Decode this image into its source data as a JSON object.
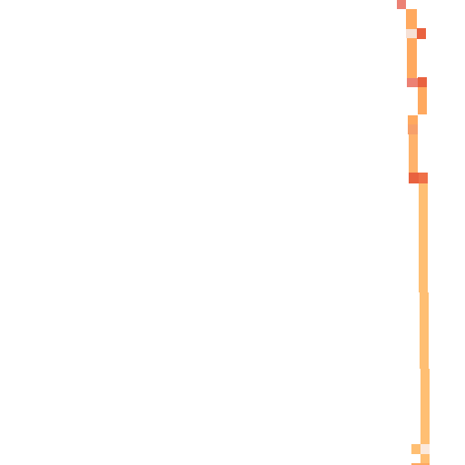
{
  "map": {
    "background": "#ffffff",
    "route_colors": {
      "light_orange": "#ffbf73",
      "orange": "#ffa95f",
      "dark_orange": "#e9623f",
      "salmon": "#ec8174",
      "pale": "#f6e1d6"
    }
  }
}
